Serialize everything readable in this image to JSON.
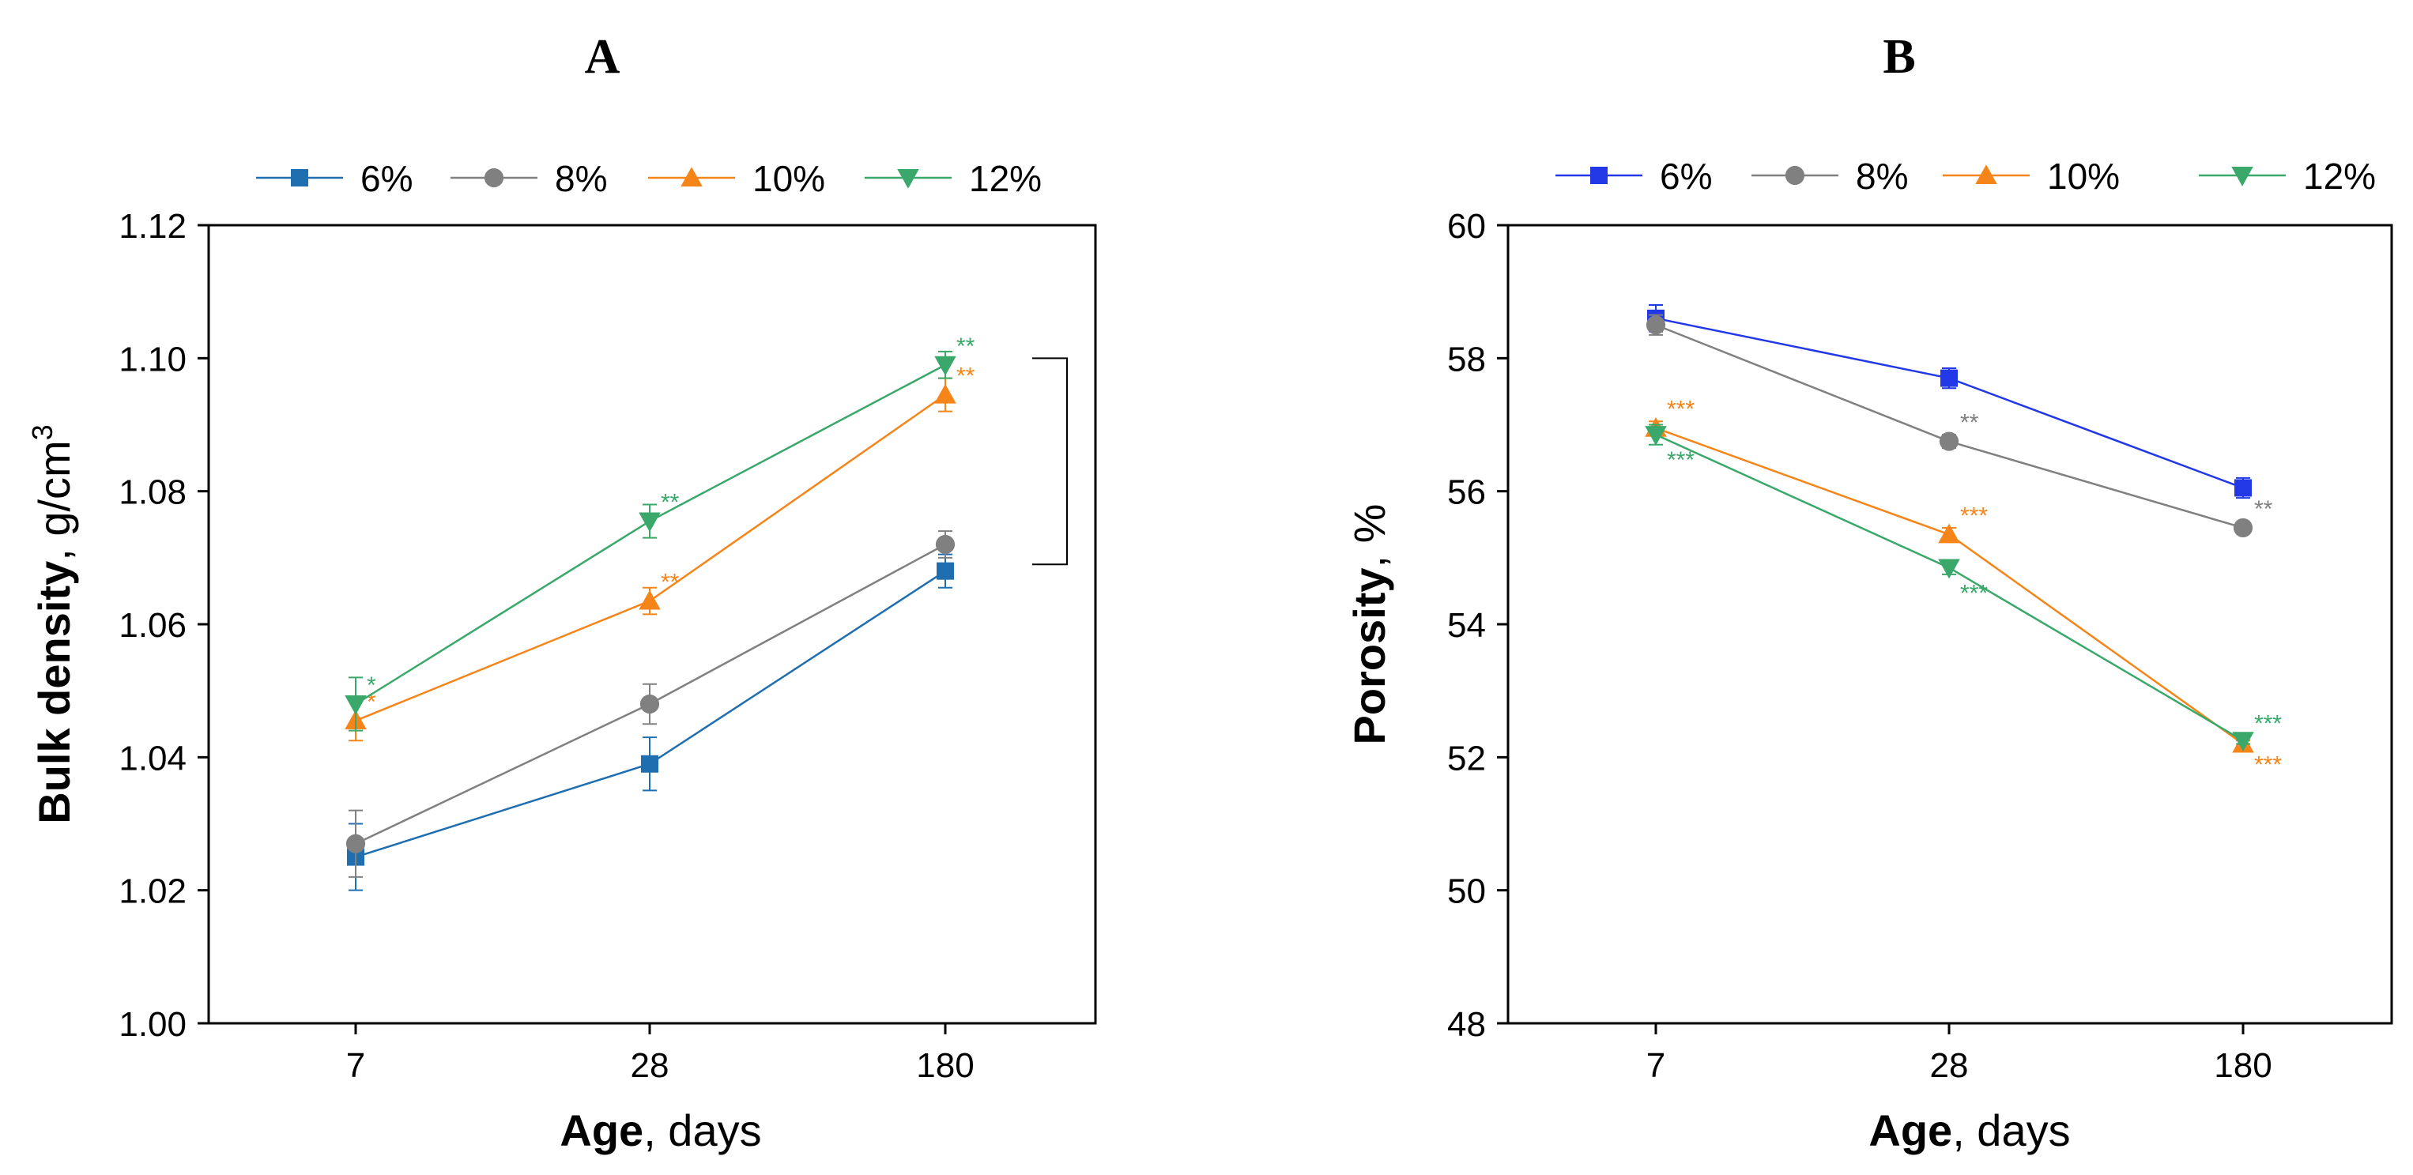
{
  "panels": [
    {
      "letter": "A",
      "ylabel_bold": "Bulk density",
      "ylabel_rest": ", g/cm",
      "ylabel_sup": "3",
      "xlabel_bold": "Age",
      "xlabel_rest": ", days"
    },
    {
      "letter": "B",
      "ylabel_bold": "Porosity",
      "ylabel_rest": ", %",
      "xlabel_bold": "Age",
      "xlabel_rest": ", days"
    }
  ],
  "chart_data": [
    {
      "type": "line",
      "title": "A",
      "xlabel": "Age, days",
      "ylabel": "Bulk density, g/cm3",
      "categories": [
        "7",
        "28",
        "180"
      ],
      "ylim": [
        1.0,
        1.12
      ],
      "yticks": [
        "1.00",
        "1.02",
        "1.04",
        "1.06",
        "1.08",
        "1.10",
        "1.12"
      ],
      "grid": false,
      "legend_position": "top",
      "bracket": {
        "from_y": 1.069,
        "to_y": 1.1
      },
      "series": [
        {
          "name": "6%",
          "color": "#1f6fb0",
          "marker": "square",
          "values": [
            1.025,
            1.039,
            1.068
          ],
          "errors": [
            0.005,
            0.004,
            0.0025
          ],
          "annotations": [
            "",
            "",
            ""
          ]
        },
        {
          "name": "8%",
          "color": "#808080",
          "marker": "circle",
          "values": [
            1.027,
            1.048,
            1.072
          ],
          "errors": [
            0.005,
            0.003,
            0.002
          ],
          "annotations": [
            "",
            "",
            ""
          ]
        },
        {
          "name": "10%",
          "color": "#f58518",
          "marker": "triangle-up",
          "values": [
            1.0455,
            1.0635,
            1.0945
          ],
          "errors": [
            0.003,
            0.002,
            0.0025
          ],
          "annotations": [
            "*",
            "**",
            "**"
          ]
        },
        {
          "name": "12%",
          "color": "#3aa86b",
          "marker": "triangle-down",
          "values": [
            1.048,
            1.0755,
            1.099
          ],
          "errors": [
            0.004,
            0.0025,
            0.002
          ],
          "annotations": [
            "*",
            "**",
            "**"
          ]
        }
      ]
    },
    {
      "type": "line",
      "title": "B",
      "xlabel": "Age, days",
      "ylabel": "Porosity, %",
      "categories": [
        "7",
        "28",
        "180"
      ],
      "ylim": [
        48,
        60
      ],
      "yticks": [
        "48",
        "50",
        "52",
        "54",
        "56",
        "58",
        "60"
      ],
      "grid": false,
      "legend_position": "top",
      "series": [
        {
          "name": "6%",
          "color": "#2238e6",
          "marker": "square",
          "values": [
            58.6,
            57.7,
            56.05
          ],
          "errors": [
            0.2,
            0.15,
            0.15
          ],
          "annotations": [
            "",
            "",
            ""
          ]
        },
        {
          "name": "8%",
          "color": "#808080",
          "marker": "circle",
          "values": [
            58.5,
            56.75,
            55.45
          ],
          "errors": [
            0.15,
            0.1,
            0.05
          ],
          "annotations": [
            "",
            "**",
            "**"
          ]
        },
        {
          "name": "10%",
          "color": "#f58518",
          "marker": "triangle-up",
          "values": [
            56.95,
            55.35,
            52.2
          ],
          "errors": [
            0.1,
            0.1,
            0.05
          ],
          "annotations": [
            "***",
            "***",
            "***"
          ]
        },
        {
          "name": "12%",
          "color": "#3aa86b",
          "marker": "triangle-down",
          "values": [
            56.85,
            54.85,
            52.25
          ],
          "errors": [
            0.15,
            0.1,
            0.05
          ],
          "annotations": [
            "***",
            "***",
            "***"
          ]
        }
      ]
    }
  ]
}
